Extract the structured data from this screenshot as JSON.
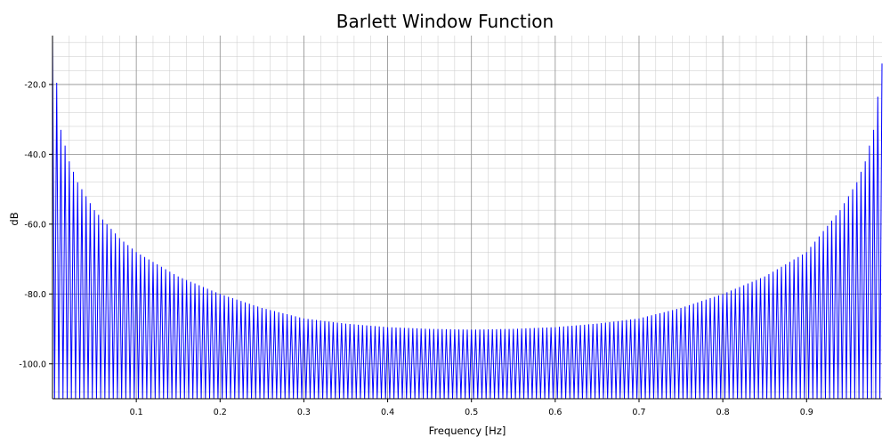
{
  "chart_data": {
    "type": "line",
    "title": "Barlett Window Function",
    "xlabel": "Frequency [Hz]",
    "ylabel": "dB",
    "xlim": [
      0.0,
      0.99
    ],
    "ylim": [
      -110.0,
      -6.0
    ],
    "x_ticks": [
      0.1,
      0.2,
      0.3,
      0.4,
      0.5,
      0.6,
      0.7,
      0.8,
      0.9
    ],
    "x_tick_labels": [
      "0.1",
      "0.2",
      "0.3",
      "0.4",
      "0.5",
      "0.6",
      "0.7",
      "0.8",
      "0.9"
    ],
    "y_ticks": [
      -100.0,
      -80.0,
      -60.0,
      -40.0,
      -20.0
    ],
    "y_tick_labels": [
      "-100.0",
      "-80.0",
      "-60.0",
      "-40.0",
      "-20.0"
    ],
    "grid": true,
    "legend": "none",
    "series": [
      {
        "color": "#0000ff",
        "sidelobe_peaks": {
          "x": [
            0.0,
            0.01,
            0.02,
            0.03,
            0.05,
            0.08,
            0.1,
            0.15,
            0.2,
            0.25,
            0.3,
            0.35,
            0.4,
            0.45,
            0.5,
            0.55,
            0.6,
            0.65,
            0.7,
            0.75,
            0.8,
            0.85,
            0.9,
            0.94,
            0.96,
            0.97,
            0.98,
            0.99
          ],
          "y": [
            -6.0,
            -33.0,
            -42.0,
            -48.0,
            -56.0,
            -64.0,
            -68.0,
            -75.0,
            -80.0,
            -84.0,
            -87.0,
            -88.5,
            -89.5,
            -90.0,
            -90.2,
            -90.0,
            -89.5,
            -88.5,
            -87.0,
            -84.0,
            -80.0,
            -75.0,
            -68.0,
            -56.0,
            -48.0,
            -42.0,
            -33.0,
            -14.0
          ]
        },
        "null_level": -110.0
      }
    ]
  }
}
